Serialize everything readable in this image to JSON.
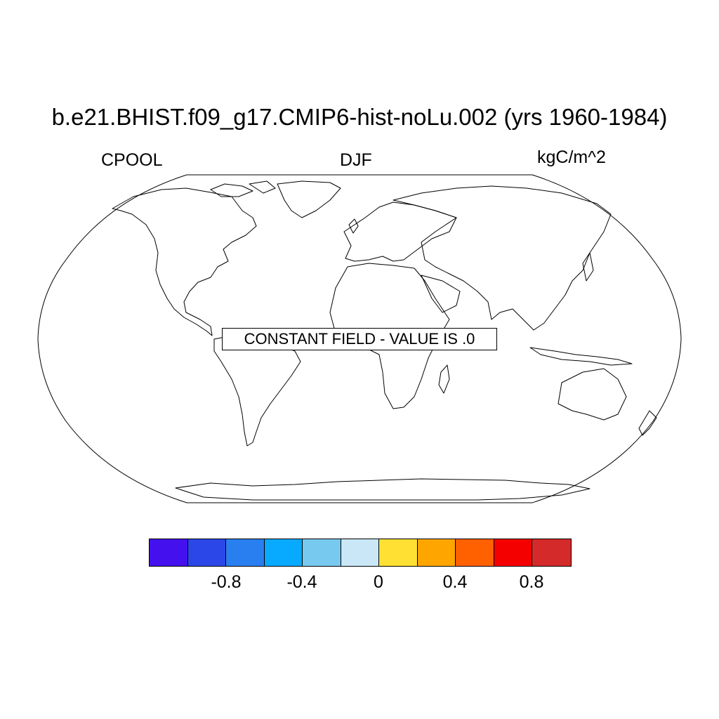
{
  "title": "b.e21.BHIST.f09_g17.CMIP6-hist-noLu.002 (yrs 1960-1984)",
  "left_label": "CPOOL",
  "center_label": "DJF",
  "right_label": "kgC/m^2",
  "message": "CONSTANT FIELD - VALUE IS .0",
  "projection": "Robinson",
  "colorbar": {
    "colors": [
      "#4411ee",
      "#2c47e8",
      "#2a7ff0",
      "#08aaff",
      "#77c9ef",
      "#c9e7f7",
      "#ffe033",
      "#ffa500",
      "#ff6000",
      "#f50000",
      "#d42a2a"
    ],
    "tick_labels": [
      "-0.8",
      "-0.4",
      "0",
      "0.4",
      "0.8"
    ]
  }
}
